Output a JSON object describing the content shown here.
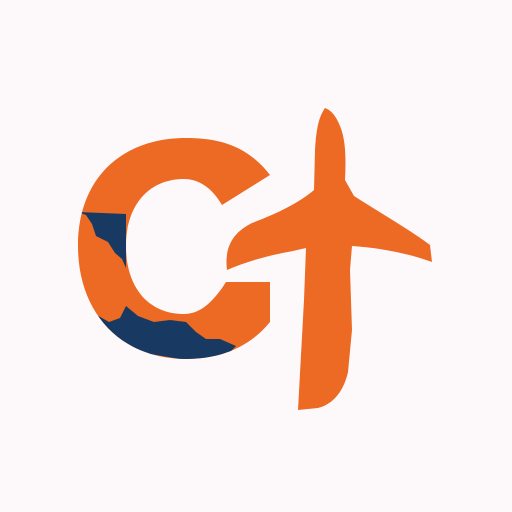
{
  "logo": {
    "name": "travel-logo",
    "icon": "letter-c-with-airplane-icon",
    "colors": {
      "background": "#fdf9fa",
      "primary": "#ec6a24",
      "secondary": "#183a62"
    }
  }
}
